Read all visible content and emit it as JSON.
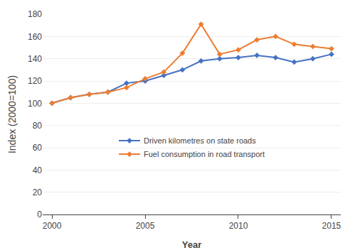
{
  "chart_data": {
    "type": "line",
    "x": [
      2000,
      2001,
      2002,
      2003,
      2004,
      2005,
      2006,
      2007,
      2008,
      2009,
      2010,
      2011,
      2012,
      2013,
      2014,
      2015
    ],
    "series": [
      {
        "name": "Driven kilometres on state roads",
        "color": "#4472C4",
        "values": [
          100,
          105,
          108,
          110,
          118,
          120,
          125,
          130,
          138,
          140,
          141,
          143,
          141,
          137,
          140,
          144
        ]
      },
      {
        "name": "Fuel consumption in road transport",
        "color": "#ED7D31",
        "values": [
          100,
          105,
          108,
          110,
          114,
          122,
          128,
          145,
          171,
          144,
          148,
          157,
          160,
          153,
          151,
          149
        ]
      }
    ],
    "xlabel": "Year",
    "ylabel": "Index (2000=100)",
    "xlim": [
      1999.5,
      2015.5
    ],
    "xticks": [
      2000,
      2005,
      2010,
      2015
    ],
    "ylim": [
      0,
      180
    ],
    "yticks": [
      0,
      20,
      40,
      60,
      80,
      100,
      120,
      140,
      160,
      180
    ],
    "grid": "y",
    "legend": "center",
    "marker": "diamond"
  }
}
